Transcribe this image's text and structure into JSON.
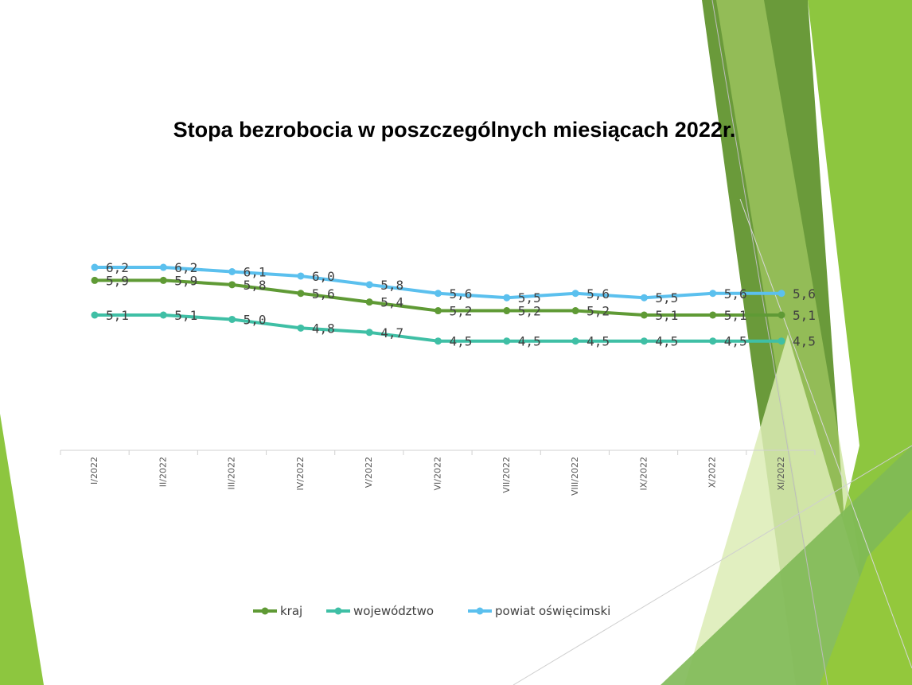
{
  "slide": {
    "decor_colors": [
      "#8dc63f",
      "#6a9a3a",
      "#b5d96f",
      "#dcecb5",
      "#4f8a3c"
    ]
  },
  "chart_data": {
    "type": "line",
    "title": "Stopa bezrobocia  w poszczególnych miesiącach 2022r.",
    "categories": [
      "I/2022",
      "II/2022",
      "III/2022",
      "IV/2022",
      "V/2022",
      "VI/2022",
      "VII/2022",
      "VIII/2022",
      "IX/2022",
      "X/2022",
      "XI/2022"
    ],
    "series": [
      {
        "name": "kraj",
        "color": "#5f9a35",
        "values": [
          5.9,
          5.9,
          5.8,
          5.6,
          5.4,
          5.2,
          5.2,
          5.2,
          5.1,
          5.1,
          5.1
        ]
      },
      {
        "name": "województwo",
        "color": "#3fbfa5",
        "values": [
          5.1,
          5.1,
          5.0,
          4.8,
          4.7,
          4.5,
          4.5,
          4.5,
          4.5,
          4.5,
          4.5
        ]
      },
      {
        "name": "powiat oświęcimski",
        "color": "#5bc0ee",
        "values": [
          6.2,
          6.2,
          6.1,
          6.0,
          5.8,
          5.6,
          5.5,
          5.6,
          5.5,
          5.6,
          5.6
        ]
      }
    ],
    "value_format": "decimal-comma-1",
    "legend": "bottom",
    "grid": false,
    "yaxis_visible": false
  }
}
